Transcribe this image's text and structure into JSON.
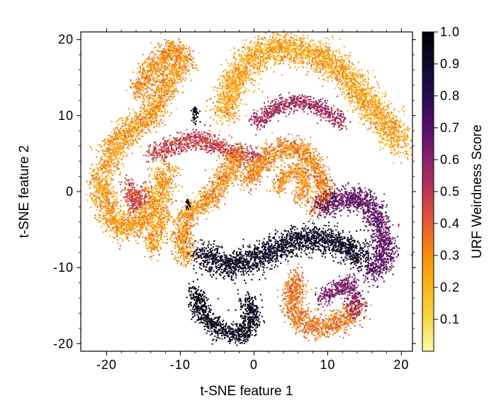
{
  "chart_data": {
    "type": "scatter",
    "xlabel": "t-SNE feature 1",
    "ylabel": "t-SNE feature 2",
    "xlim": [
      -23.5,
      21.5
    ],
    "ylim": [
      -21,
      21
    ],
    "x_ticks": [
      -20,
      -10,
      0,
      10,
      20
    ],
    "x_tick_labels": [
      "-20",
      "-10",
      "0",
      "10",
      "20"
    ],
    "y_ticks": [
      -20,
      -10,
      0,
      10,
      20
    ],
    "y_tick_labels": [
      "-20",
      "-10",
      "0",
      "10",
      "20"
    ],
    "colorbar": {
      "label": "URF Weirdness Score",
      "colormap": "inferno_r",
      "range": [
        0.0,
        1.0
      ],
      "ticks": [
        0.1,
        0.2,
        0.3,
        0.4,
        0.5,
        0.6,
        0.7,
        0.8,
        0.9,
        1.0
      ],
      "tick_labels": [
        "0.1",
        "0.2",
        "0.3",
        "0.4",
        "0.5",
        "0.6",
        "0.7",
        "0.8",
        "0.9",
        "1.0"
      ]
    },
    "clusters": [
      {
        "name_hint": "top-arc",
        "points": [
          [
            -20,
            3
          ],
          [
            -19,
            6
          ],
          [
            -17,
            8
          ],
          [
            -14,
            10
          ],
          [
            -12,
            14
          ],
          [
            -10,
            17
          ]
        ],
        "spread": 1.6,
        "score": 0.28
      },
      {
        "name_hint": "upper-left-arm",
        "points": [
          [
            -16,
            13
          ],
          [
            -14,
            16
          ],
          [
            -11,
            19
          ],
          [
            -9,
            17
          ]
        ],
        "spread": 1.3,
        "score": 0.3
      },
      {
        "name_hint": "big-top-arc",
        "points": [
          [
            -4,
            10
          ],
          [
            -3,
            14
          ],
          [
            0,
            18
          ],
          [
            4,
            19
          ],
          [
            8,
            18
          ],
          [
            12,
            16
          ],
          [
            15,
            12
          ],
          [
            18,
            9
          ],
          [
            20,
            6
          ]
        ],
        "spread": 1.8,
        "score": 0.25
      },
      {
        "name_hint": "inner-top-band",
        "points": [
          [
            0,
            9
          ],
          [
            3,
            11
          ],
          [
            6,
            12
          ],
          [
            9,
            11
          ],
          [
            12,
            9
          ]
        ],
        "spread": 1.0,
        "score": 0.55
      },
      {
        "name_hint": "left-loop",
        "points": [
          [
            -21,
            2
          ],
          [
            -20,
            -2
          ],
          [
            -18,
            -5
          ],
          [
            -15,
            -4
          ],
          [
            -13,
            -1
          ],
          [
            -12,
            3
          ]
        ],
        "spread": 1.6,
        "score": 0.27
      },
      {
        "name_hint": "left-inner",
        "points": [
          [
            -17,
            1
          ],
          [
            -16,
            -2
          ],
          [
            -15,
            0
          ]
        ],
        "spread": 1.0,
        "score": 0.45
      },
      {
        "name_hint": "mid-band",
        "points": [
          [
            -14,
            5
          ],
          [
            -11,
            6
          ],
          [
            -8,
            7
          ],
          [
            -5,
            6
          ],
          [
            -2,
            5
          ],
          [
            1,
            4
          ]
        ],
        "spread": 1.1,
        "score": 0.48
      },
      {
        "name_hint": "center-s",
        "points": [
          [
            -9,
            -9
          ],
          [
            -10,
            -6
          ],
          [
            -9,
            -3
          ],
          [
            -6,
            -1
          ],
          [
            -4,
            2
          ],
          [
            -2,
            5
          ]
        ],
        "spread": 1.3,
        "score": 0.3
      },
      {
        "name_hint": "small-s-left",
        "points": [
          [
            -14,
            -8
          ],
          [
            -13,
            -5
          ],
          [
            -12,
            -3
          ]
        ],
        "spread": 1.0,
        "score": 0.28
      },
      {
        "name_hint": "center-loop",
        "points": [
          [
            -1,
            1
          ],
          [
            1,
            4
          ],
          [
            4,
            6
          ],
          [
            7,
            5
          ],
          [
            9,
            2
          ],
          [
            10,
            -1
          ],
          [
            8,
            -2
          ]
        ],
        "spread": 1.3,
        "score": 0.32
      },
      {
        "name_hint": "small-hook",
        "points": [
          [
            3,
            0
          ],
          [
            4,
            2
          ],
          [
            6,
            3
          ],
          [
            7,
            1
          ],
          [
            6,
            -1
          ]
        ],
        "spread": 0.9,
        "score": 0.3
      },
      {
        "name_hint": "right-purple",
        "points": [
          [
            9,
            -2
          ],
          [
            12,
            -1
          ],
          [
            15,
            -1
          ],
          [
            17,
            -4
          ],
          [
            18,
            -8
          ],
          [
            16,
            -11
          ]
        ],
        "spread": 1.5,
        "score": 0.68
      },
      {
        "name_hint": "dark-band",
        "points": [
          [
            -7,
            -8
          ],
          [
            -4,
            -10
          ],
          [
            0,
            -9
          ],
          [
            4,
            -7
          ],
          [
            8,
            -6
          ],
          [
            12,
            -7
          ],
          [
            15,
            -9
          ]
        ],
        "spread": 1.6,
        "score": 0.93
      },
      {
        "name_hint": "dark-tail",
        "points": [
          [
            -8,
            -13
          ],
          [
            -7,
            -16
          ],
          [
            -5,
            -18
          ],
          [
            -2,
            -19
          ],
          [
            0,
            -17
          ],
          [
            -1,
            -14
          ]
        ],
        "spread": 1.2,
        "score": 0.96
      },
      {
        "name_hint": "bottom-right-loop",
        "points": [
          [
            6,
            -11
          ],
          [
            5,
            -14
          ],
          [
            6,
            -17
          ],
          [
            9,
            -18
          ],
          [
            12,
            -17
          ],
          [
            14,
            -15
          ]
        ],
        "spread": 1.4,
        "score": 0.35
      },
      {
        "name_hint": "bottom-right-inner",
        "points": [
          [
            9,
            -14
          ],
          [
            11,
            -13
          ],
          [
            13,
            -12
          ],
          [
            14,
            -16
          ]
        ],
        "spread": 1.0,
        "score": 0.62
      },
      {
        "name_hint": "tiny-dark-1",
        "points": [
          [
            -8,
            9
          ],
          [
            -8,
            11
          ]
        ],
        "spread": 0.5,
        "score": 1.0
      },
      {
        "name_hint": "tiny-dark-2",
        "points": [
          [
            -9,
            -1
          ],
          [
            -9,
            -2
          ]
        ],
        "spread": 0.4,
        "score": 1.0
      }
    ]
  }
}
